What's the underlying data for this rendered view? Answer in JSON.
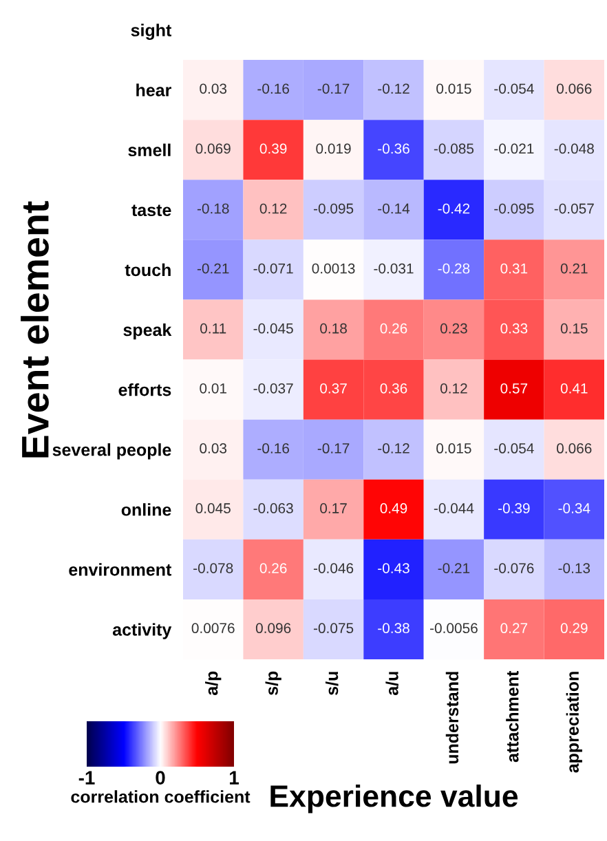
{
  "chart_data": {
    "type": "heatmap",
    "xlabel": "Experience value",
    "ylabel": "Event element",
    "clabel": "correlation coefficient",
    "categories": [
      "a/p",
      "s/p",
      "s/u",
      "a/u",
      "understand",
      "attachment",
      "appreciation"
    ],
    "y_categories": [
      "sight",
      "hear",
      "smell",
      "taste",
      "touch",
      "speak",
      "efforts",
      "several people",
      "online",
      "environment",
      "activity"
    ],
    "cells": [
      [
        null,
        null,
        null,
        null,
        null,
        null,
        null
      ],
      [
        0.03,
        -0.16,
        -0.17,
        -0.12,
        0.015,
        -0.054,
        0.066
      ],
      [
        0.069,
        0.39,
        0.019,
        -0.36,
        -0.085,
        -0.021,
        -0.048
      ],
      [
        -0.18,
        0.12,
        -0.095,
        -0.14,
        -0.42,
        -0.095,
        -0.057
      ],
      [
        -0.21,
        -0.071,
        0.0013,
        -0.031,
        -0.28,
        0.31,
        0.21
      ],
      [
        0.11,
        -0.045,
        0.18,
        0.26,
        0.23,
        0.33,
        0.15
      ],
      [
        0.01,
        -0.037,
        0.37,
        0.36,
        0.12,
        0.57,
        0.41
      ],
      [
        0.03,
        -0.16,
        -0.17,
        -0.12,
        0.015,
        -0.054,
        0.066
      ],
      [
        0.045,
        -0.063,
        0.17,
        0.49,
        -0.044,
        -0.39,
        -0.34
      ],
      [
        -0.078,
        0.26,
        -0.046,
        -0.43,
        -0.21,
        -0.076,
        -0.13
      ],
      [
        0.0076,
        0.096,
        -0.075,
        -0.38,
        -0.0056,
        0.27,
        0.29
      ]
    ],
    "clim": [
      -1,
      1
    ],
    "cticks": [
      -1,
      0,
      1
    ],
    "data_labels": true
  }
}
